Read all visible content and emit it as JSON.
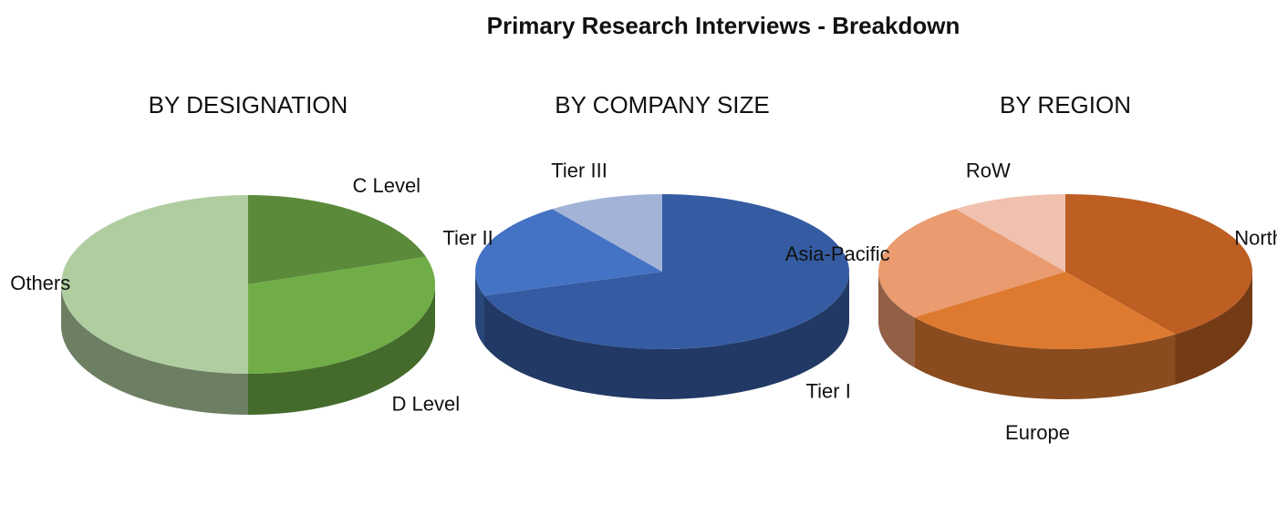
{
  "title": "Primary Research Interviews - Breakdown",
  "chart_data": [
    {
      "type": "pie",
      "title": "BY DESIGNATION",
      "categories": [
        "C Level",
        "D Level",
        "Others"
      ],
      "values": [
        20,
        30,
        50
      ],
      "colors": [
        "#5a8a3a",
        "#70ad47",
        "#b0cda0"
      ]
    },
    {
      "type": "pie",
      "title": "BY COMPANY SIZE",
      "categories": [
        "Tier I",
        "Tier II",
        "Tier III"
      ],
      "values": [
        70,
        20,
        10
      ],
      "colors": [
        "#355ca2",
        "#4472c4",
        "#a3b3d8"
      ]
    },
    {
      "type": "pie",
      "title": "BY REGION",
      "categories": [
        "North America",
        "Europe",
        "Asia-Pacific",
        "RoW"
      ],
      "values": [
        40,
        25,
        25,
        10
      ],
      "colors": [
        "#bd5e23",
        "#de7a30",
        "#eb9b70",
        "#f0c1ae"
      ]
    }
  ]
}
